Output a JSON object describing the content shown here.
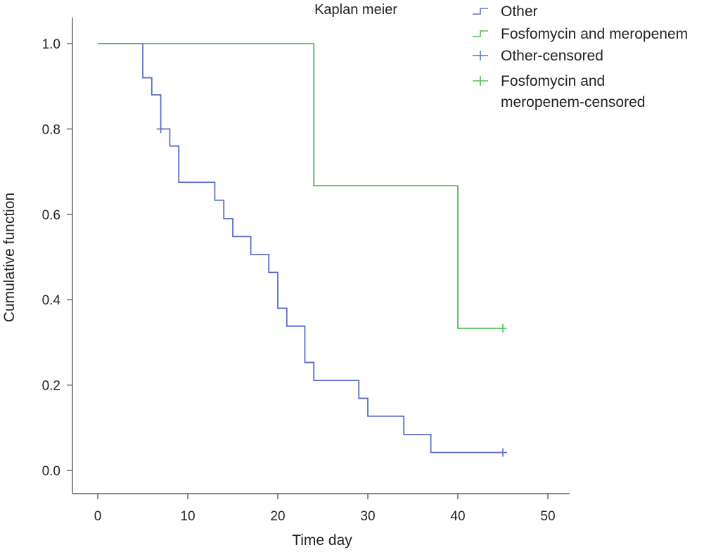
{
  "chart_data": {
    "type": "line",
    "title": "Kaplan meier",
    "xlabel": "Time day",
    "ylabel": "Cumulative function",
    "xlim": [
      0,
      50
    ],
    "ylim": [
      0,
      1
    ],
    "x_ticks": [
      0,
      10,
      20,
      30,
      40,
      50
    ],
    "x_tick_labels": [
      "0",
      "10",
      "20",
      "30",
      "40",
      "50"
    ],
    "y_ticks": [
      0,
      0.2,
      0.4,
      0.6,
      0.8,
      1.0
    ],
    "y_tick_labels": [
      "0.0",
      "0.2",
      "0.4",
      "0.6",
      "0.8",
      "1.0"
    ],
    "grid": false,
    "legend_position": "top-right, outside plot",
    "series": [
      {
        "name": "Other",
        "color": "#5b6fc8",
        "step_points": [
          [
            0,
            1.0
          ],
          [
            5,
            0.92
          ],
          [
            6,
            0.88
          ],
          [
            7,
            0.8
          ],
          [
            8,
            0.76
          ],
          [
            9,
            0.675
          ],
          [
            13,
            0.633
          ],
          [
            14,
            0.59
          ],
          [
            15,
            0.548
          ],
          [
            17,
            0.506
          ],
          [
            19,
            0.464
          ],
          [
            20,
            0.38
          ],
          [
            21,
            0.338
          ],
          [
            23,
            0.253
          ],
          [
            24,
            0.211
          ],
          [
            29,
            0.169
          ],
          [
            30,
            0.127
          ],
          [
            34,
            0.084
          ],
          [
            37,
            0.042
          ],
          [
            45,
            0.042
          ]
        ],
        "censored": [
          [
            7,
            0.8
          ],
          [
            45,
            0.042
          ]
        ]
      },
      {
        "name": "Fosfomycin and meropenem",
        "color": "#4cbf55",
        "step_points": [
          [
            0,
            1.0
          ],
          [
            24,
            0.667
          ],
          [
            40,
            0.333
          ],
          [
            45,
            0.333
          ]
        ],
        "censored": [
          [
            45,
            0.333
          ]
        ]
      }
    ],
    "legend": [
      {
        "label": "Other",
        "kind": "step",
        "color": "#5b6fc8"
      },
      {
        "label": "Fosfomycin and meropenem",
        "kind": "step",
        "color": "#4cbf55"
      },
      {
        "label": "Other-censored",
        "kind": "cross",
        "color": "#5b6fc8"
      },
      {
        "label_lines": [
          "Fosfomycin and",
          "meropenem-censored"
        ],
        "kind": "cross",
        "color": "#4cbf55"
      }
    ]
  }
}
